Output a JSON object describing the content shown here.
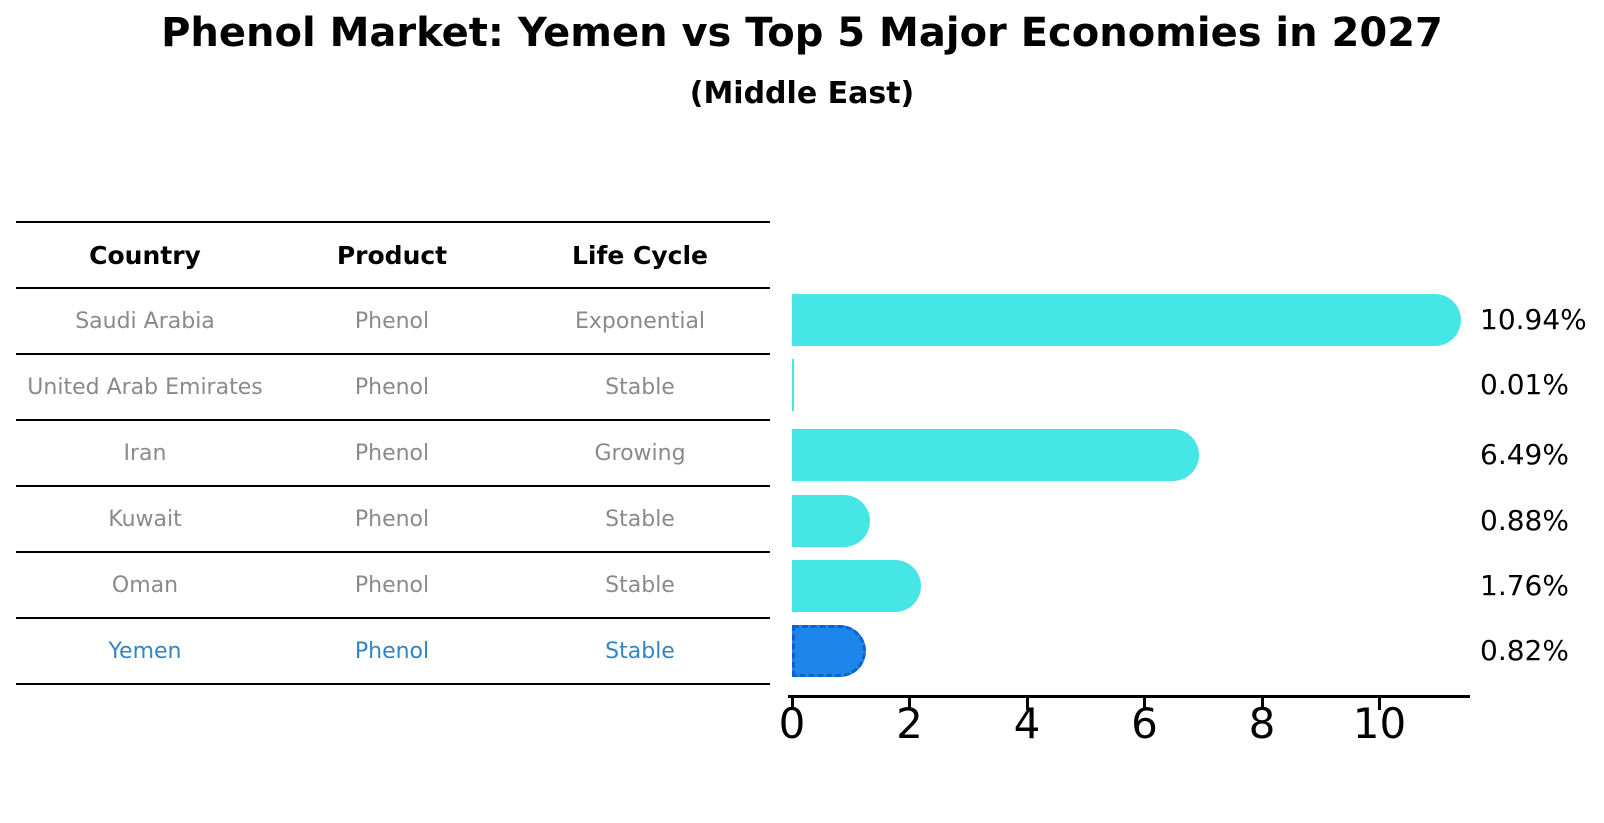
{
  "title": "Phenol Market: Yemen vs Top 5 Major Economies in 2027",
  "subtitle": "(Middle East)",
  "table": {
    "headers": [
      "Country",
      "Product",
      "Life Cycle"
    ],
    "rows": [
      {
        "country": "Saudi Arabia",
        "product": "Phenol",
        "life_cycle": "Exponential",
        "highlight": false
      },
      {
        "country": "United Arab Emirates",
        "product": "Phenol",
        "life_cycle": "Stable",
        "highlight": false
      },
      {
        "country": "Iran",
        "product": "Phenol",
        "life_cycle": "Growing",
        "highlight": false
      },
      {
        "country": "Kuwait",
        "product": "Phenol",
        "life_cycle": "Stable",
        "highlight": false
      },
      {
        "country": "Oman",
        "product": "Phenol",
        "life_cycle": "Stable",
        "highlight": false
      },
      {
        "country": "Yemen",
        "product": "Phenol",
        "life_cycle": "Stable",
        "highlight": true
      }
    ]
  },
  "chart_data": {
    "type": "bar",
    "orientation": "horizontal",
    "title": "Phenol Market: Yemen vs Top 5 Major Economies in 2027",
    "subtitle": "(Middle East)",
    "categories": [
      "Saudi Arabia",
      "United Arab Emirates",
      "Iran",
      "Kuwait",
      "Oman",
      "Yemen"
    ],
    "values": [
      10.94,
      0.01,
      6.49,
      0.88,
      1.76,
      0.82
    ],
    "value_labels": [
      "10.94%",
      "0.01%",
      "6.49%",
      "0.88%",
      "1.76%",
      "0.82%"
    ],
    "highlight_index": 5,
    "x_ticks": [
      0,
      2,
      4,
      6,
      8,
      10
    ],
    "xlim": [
      0,
      11.5
    ],
    "grid": false,
    "legend": false
  },
  "colors": {
    "bar": "#46e5e6",
    "highlight_bar": "#1e85eb",
    "highlight_border": "#0e62c8",
    "table_text": "#8a8a8a",
    "highlight_text": "#3185c6",
    "text": "#000000"
  }
}
